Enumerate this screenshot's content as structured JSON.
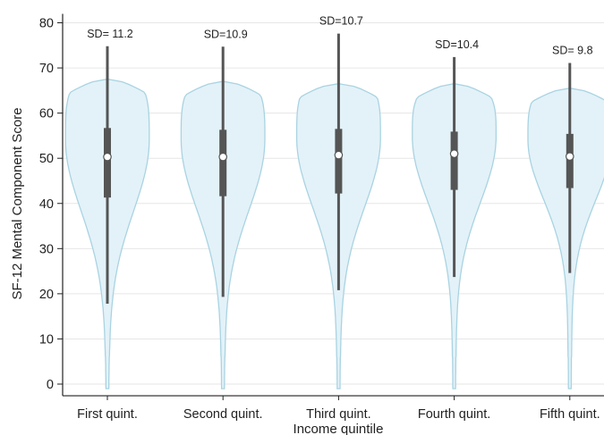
{
  "chart_data": {
    "type": "violin",
    "xlabel": "Income quintile",
    "ylabel": "SF-12 Mental Component Score",
    "ylim": [
      -1,
      82
    ],
    "yticks": [
      0,
      10,
      20,
      30,
      40,
      50,
      60,
      70,
      80
    ],
    "grid": true,
    "categories": [
      "First quint.",
      "Second quint.",
      "Third quint.",
      "Fourth quint.",
      "Fifth quint."
    ],
    "sd_labels": [
      "SD= 11.2",
      "SD=10.9",
      "SD=10.7",
      "SD=10.4",
      "SD= 9.8"
    ],
    "groups": [
      {
        "name": "First quint.",
        "median": 50.3,
        "q1": 41.3,
        "q3": 56.7,
        "whisker_low": 17.8,
        "whisker_high": 74.8,
        "density_range": [
          -1,
          67.5
        ]
      },
      {
        "name": "Second quint.",
        "median": 50.3,
        "q1": 41.6,
        "q3": 56.3,
        "whisker_low": 19.3,
        "whisker_high": 74.7,
        "density_range": [
          -1,
          67.0
        ]
      },
      {
        "name": "Third quint.",
        "median": 50.7,
        "q1": 42.2,
        "q3": 56.5,
        "whisker_low": 20.8,
        "whisker_high": 77.6,
        "density_range": [
          -1,
          66.5
        ]
      },
      {
        "name": "Fourth quint.",
        "median": 51.0,
        "q1": 43.0,
        "q3": 55.9,
        "whisker_low": 23.7,
        "whisker_high": 72.4,
        "density_range": [
          -1,
          66.5
        ]
      },
      {
        "name": "Fifth quint.",
        "median": 50.4,
        "q1": 43.4,
        "q3": 55.4,
        "whisker_low": 24.6,
        "whisker_high": 71.1,
        "density_range": [
          -1,
          65.5
        ]
      }
    ],
    "colors": {
      "violin_fill": "#e3f2f8",
      "violin_stroke": "#a9d3e2",
      "box": "#555555",
      "whisker": "#555555",
      "median_marker": "#ffffff",
      "grid": "#e6e6e6",
      "axis": "#222222"
    }
  }
}
